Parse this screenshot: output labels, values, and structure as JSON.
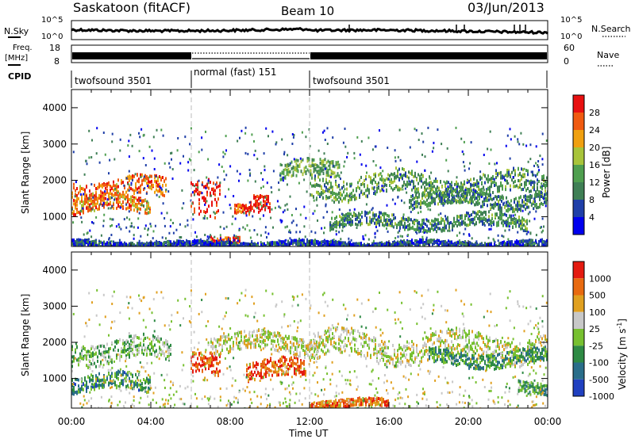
{
  "header": {
    "station": "Saskatoon (fitACF)",
    "beam": "Beam 10",
    "date": "03/Jun/2013"
  },
  "noise_panel": {
    "left_label": "N.Sky",
    "right_label": "N.Search",
    "left_ticks": [
      "10^5",
      "10^0"
    ],
    "right_ticks": [
      "10^5",
      "10^0"
    ]
  },
  "freq_panel": {
    "left_label_1": "Freq.",
    "left_label_2": "[MHz]",
    "right_label": "Nave",
    "left_ticks": [
      "18",
      "8"
    ],
    "right_ticks": [
      "60",
      "0"
    ]
  },
  "cpid_panel": {
    "label": "CPID",
    "segments": [
      {
        "name": "twofsound 3501",
        "start_h": 0,
        "end_h": 6
      },
      {
        "name": "normal (fast) 151",
        "start_h": 6,
        "end_h": 12
      },
      {
        "name": "twofsound 3501",
        "start_h": 12,
        "end_h": 24
      }
    ]
  },
  "time_axis": {
    "label": "Time UT",
    "ticks": [
      "00:00",
      "04:00",
      "08:00",
      "12:00",
      "16:00",
      "20:00",
      "00:00"
    ]
  },
  "power_panel": {
    "ylabel": "Slant Range [km]",
    "yticks": [
      "1000",
      "2000",
      "3000",
      "4000"
    ],
    "colorbar_label": "Power [dB]",
    "colorbar_ticks": [
      "28",
      "24",
      "20",
      "16",
      "12",
      "8",
      "4"
    ]
  },
  "velocity_panel": {
    "ylabel": "Slant Range [km]",
    "yticks": [
      "1000",
      "2000",
      "3000",
      "4000"
    ],
    "colorbar_label": "Velocity [m s",
    "colorbar_label_sup": "-1",
    "colorbar_label_close": "]",
    "colorbar_ticks": [
      "1000",
      "500",
      "100",
      "25",
      "-25",
      "-100",
      "-500",
      "-1000"
    ]
  },
  "chart_data": {
    "type": "heatmap",
    "x_range_hours": [
      0,
      24
    ],
    "y_range_km": [
      180,
      4500
    ],
    "mode_changes_hours": [
      6,
      12
    ],
    "power_colors": [
      "#0000ee",
      "#1f3fa8",
      "#3f7f55",
      "#4f9f4f",
      "#a8c43a",
      "#f0a010",
      "#f05a10",
      "#e81010"
    ],
    "velocity_colors": [
      "#2040c0",
      "#2a6e8a",
      "#2e8a44",
      "#77c030",
      "#c8c8c8",
      "#e0a020",
      "#e86a10",
      "#e41a10"
    ],
    "power_bands": [
      {
        "h0": 0.0,
        "h1": 4.8,
        "r_km": 1800,
        "width_km": 260,
        "level": 0.78
      },
      {
        "h0": 0.0,
        "h1": 4.0,
        "r_km": 1350,
        "width_km": 200,
        "level": 0.75
      },
      {
        "h0": 6.0,
        "h1": 7.5,
        "r_km": 1300,
        "width_km": 500,
        "level": 0.95
      },
      {
        "h0": 7.0,
        "h1": 8.5,
        "r_km": 400,
        "width_km": 150,
        "level": 0.9
      },
      {
        "h0": 9.0,
        "h1": 10.0,
        "r_km": 1250,
        "width_km": 250,
        "level": 0.95
      },
      {
        "h0": 8.2,
        "h1": 9.0,
        "r_km": 1200,
        "width_km": 120,
        "level": 0.85
      },
      {
        "h0": 10.5,
        "h1": 13.5,
        "r_km": 2300,
        "width_km": 220,
        "level": 0.45
      },
      {
        "h0": 12.0,
        "h1": 24.0,
        "r_km": 1900,
        "width_km": 300,
        "level": 0.4
      },
      {
        "h0": 13.0,
        "h1": 23.0,
        "r_km": 900,
        "width_km": 180,
        "level": 0.35
      },
      {
        "h0": 17.0,
        "h1": 24.0,
        "r_km": 1500,
        "width_km": 200,
        "level": 0.35
      },
      {
        "h0": 0.0,
        "h1": 24.0,
        "r_km": 280,
        "width_km": 80,
        "level": 0.2
      }
    ],
    "velocity_bands": [
      {
        "h0": 0.0,
        "h1": 5.0,
        "r_km": 1800,
        "width_km": 300,
        "level": 0.45
      },
      {
        "h0": 0.0,
        "h1": 4.0,
        "r_km": 900,
        "width_km": 220,
        "level": 0.28
      },
      {
        "h0": 6.0,
        "h1": 7.5,
        "r_km": 1300,
        "width_km": 300,
        "level": 0.85
      },
      {
        "h0": 8.8,
        "h1": 11.8,
        "r_km": 1250,
        "width_km": 250,
        "level": 0.85
      },
      {
        "h0": 7.0,
        "h1": 12.5,
        "r_km": 2000,
        "width_km": 250,
        "level": 0.55
      },
      {
        "h0": 12.0,
        "h1": 24.0,
        "r_km": 1900,
        "width_km": 350,
        "level": 0.55
      },
      {
        "h0": 18.0,
        "h1": 24.0,
        "r_km": 1600,
        "width_km": 200,
        "level": 0.3
      },
      {
        "h0": 22.5,
        "h1": 24.0,
        "r_km": 750,
        "width_km": 150,
        "level": 0.3
      },
      {
        "h0": 12.0,
        "h1": 16.0,
        "r_km": 350,
        "width_km": 100,
        "level": 0.8
      }
    ]
  }
}
